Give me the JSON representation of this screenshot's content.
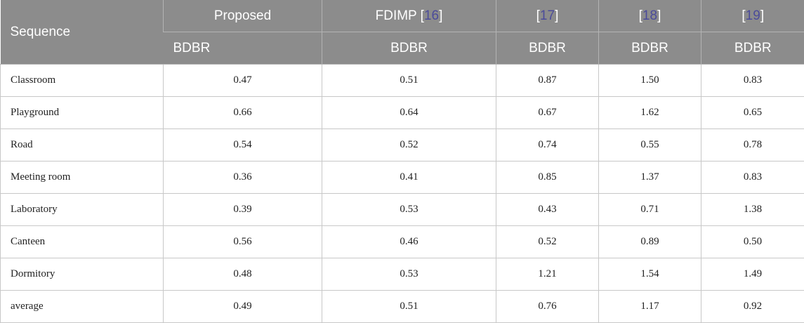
{
  "header": {
    "sequence": "Sequence",
    "methods": [
      {
        "name": "Proposed",
        "ref": ""
      },
      {
        "name": "FDIMP ",
        "ref": "16"
      },
      {
        "name": "",
        "ref": "17"
      },
      {
        "name": "",
        "ref": "18"
      },
      {
        "name": "",
        "ref": "19"
      }
    ],
    "metric": "BDBR"
  },
  "rows": [
    {
      "label": "Classroom",
      "values": [
        "0.47",
        "0.51",
        "0.87",
        "1.50",
        "0.83"
      ]
    },
    {
      "label": "Playground",
      "values": [
        "0.66",
        "0.64",
        "0.67",
        "1.62",
        "0.65"
      ]
    },
    {
      "label": "Road",
      "values": [
        "0.54",
        "0.52",
        "0.74",
        "0.55",
        "0.78"
      ]
    },
    {
      "label": "Meeting room",
      "values": [
        "0.36",
        "0.41",
        "0.85",
        "1.37",
        "0.83"
      ]
    },
    {
      "label": "Laboratory",
      "values": [
        "0.39",
        "0.53",
        "0.43",
        "0.71",
        "1.38"
      ]
    },
    {
      "label": "Canteen",
      "values": [
        "0.56",
        "0.46",
        "0.52",
        "0.89",
        "0.50"
      ]
    },
    {
      "label": "Dormitory",
      "values": [
        "0.48",
        "0.53",
        "1.21",
        "1.54",
        "1.49"
      ]
    },
    {
      "label": "average",
      "values": [
        "0.49",
        "0.51",
        "0.76",
        "1.17",
        "0.92"
      ]
    }
  ]
}
